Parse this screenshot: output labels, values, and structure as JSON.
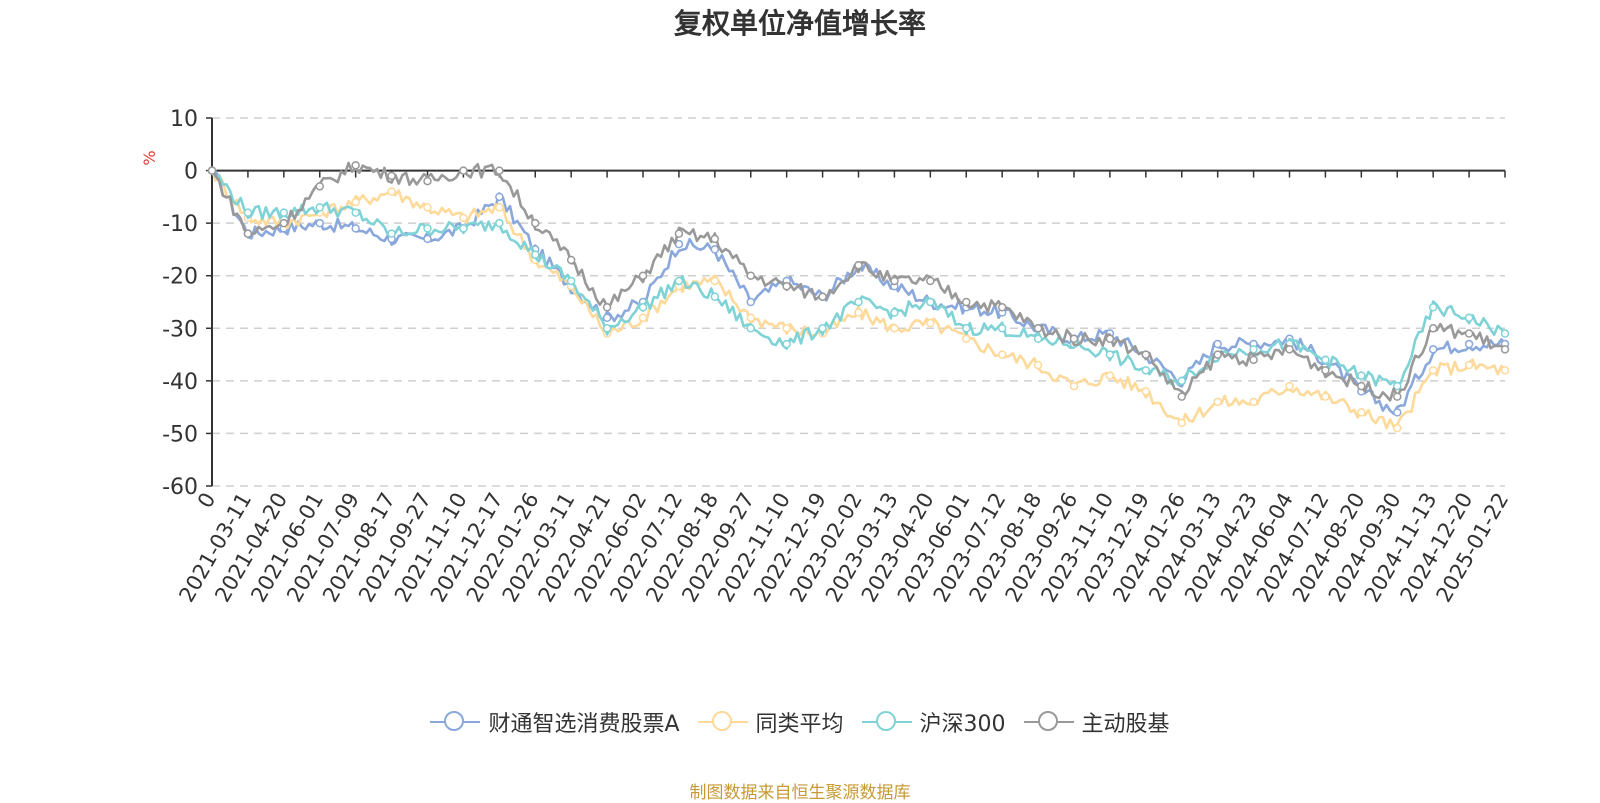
{
  "chart_data": {
    "type": "line",
    "title": "复权单位净值增长率",
    "ylabel": "%",
    "ylim": [
      -60,
      10
    ],
    "yticks": [
      10,
      0,
      -10,
      -20,
      -30,
      -40,
      -50,
      -60
    ],
    "grid": true,
    "legend_position": "bottom",
    "categories": [
      "0",
      "2021-03-11",
      "2021-04-20",
      "2021-06-01",
      "2021-07-09",
      "2021-08-17",
      "2021-09-27",
      "2021-11-10",
      "2021-12-17",
      "2022-01-26",
      "2022-03-11",
      "2022-04-21",
      "2022-06-02",
      "2022-07-12",
      "2022-08-18",
      "2022-09-27",
      "2022-11-10",
      "2022-12-19",
      "2023-02-02",
      "2023-03-13",
      "2023-04-20",
      "2023-06-01",
      "2023-07-12",
      "2023-08-18",
      "2023-09-26",
      "2023-11-10",
      "2023-12-19",
      "2024-01-26",
      "2024-03-13",
      "2024-04-23",
      "2024-06-04",
      "2024-07-12",
      "2024-08-20",
      "2024-09-30",
      "2024-11-13",
      "2024-12-20",
      "2025-01-22"
    ],
    "series": [
      {
        "name": "财通智选消费股票A",
        "color": "#8aa8dc",
        "values": [
          0,
          -12,
          -11,
          -10,
          -11,
          -13,
          -13,
          -11,
          -5,
          -15,
          -22,
          -28,
          -25,
          -14,
          -15,
          -25,
          -21,
          -24,
          -18,
          -22,
          -25,
          -26,
          -27,
          -30,
          -32,
          -31,
          -35,
          -40,
          -33,
          -33,
          -32,
          -36,
          -42,
          -46,
          -34,
          -33,
          -33
        ]
      },
      {
        "name": "同类平均",
        "color": "#fdd99a",
        "values": [
          0,
          -9,
          -10,
          -8,
          -6,
          -4,
          -7,
          -9,
          -7,
          -17,
          -22,
          -31,
          -28,
          -22,
          -21,
          -28,
          -30,
          -31,
          -27,
          -30,
          -29,
          -32,
          -35,
          -37,
          -41,
          -39,
          -42,
          -48,
          -44,
          -44,
          -41,
          -43,
          -46,
          -49,
          -38,
          -37,
          -38
        ]
      },
      {
        "name": "沪深300",
        "color": "#7fd3d6",
        "values": [
          0,
          -8,
          -8,
          -7,
          -8,
          -12,
          -11,
          -11,
          -10,
          -16,
          -21,
          -30,
          -26,
          -21,
          -24,
          -30,
          -33,
          -30,
          -25,
          -27,
          -25,
          -30,
          -30,
          -32,
          -33,
          -35,
          -38,
          -40,
          -35,
          -34,
          -33,
          -36,
          -39,
          -41,
          -26,
          -28,
          -31
        ]
      },
      {
        "name": "主动股基",
        "color": "#999999",
        "values": [
          0,
          -12,
          -10,
          -3,
          1,
          -1,
          -2,
          0,
          0,
          -10,
          -17,
          -26,
          -20,
          -12,
          -13,
          -20,
          -22,
          -24,
          -18,
          -21,
          -21,
          -25,
          -26,
          -30,
          -32,
          -32,
          -35,
          -43,
          -35,
          -36,
          -34,
          -38,
          -41,
          -43,
          -30,
          -31,
          -34
        ]
      }
    ]
  },
  "source_text": "制图数据来自恒生聚源数据库"
}
